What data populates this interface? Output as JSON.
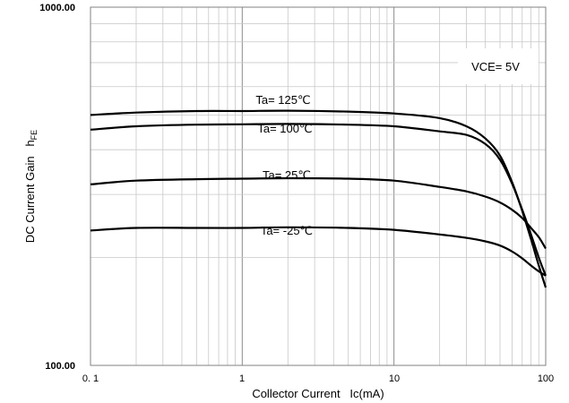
{
  "chart_data": {
    "type": "line",
    "title": "",
    "xlabel": "Collector Current   Ic(mA)",
    "ylabel": "DC Current Gain   h",
    "ylabel_subscript": "FE",
    "x_scale": "log",
    "y_scale": "log",
    "xlim": [
      0.1,
      100
    ],
    "ylim": [
      100,
      1000
    ],
    "x_tick_labels": [
      "0. 1",
      "1",
      "10",
      "100"
    ],
    "y_tick_labels": [
      "100.00",
      "1000.00"
    ],
    "grid": true,
    "annotation": "VCE= 5V",
    "series": [
      {
        "name": "Ta= 125℃",
        "x": [
          0.1,
          0.2,
          0.5,
          1,
          2,
          5,
          10,
          20,
          30,
          40,
          50,
          60,
          70,
          80,
          90,
          100
        ],
        "y": [
          500,
          508,
          513,
          513,
          514,
          511,
          505,
          490,
          465,
          430,
          385,
          325,
          270,
          225,
          190,
          165
        ]
      },
      {
        "name": "Ta= 100℃",
        "x": [
          0.1,
          0.2,
          0.5,
          1,
          2,
          5,
          10,
          20,
          30,
          40,
          50,
          60,
          70,
          80,
          90,
          100
        ],
        "y": [
          455,
          465,
          470,
          471,
          472,
          470,
          465,
          450,
          440,
          415,
          375,
          322,
          272,
          232,
          200,
          178
        ]
      },
      {
        "name": "Ta= 25℃",
        "x": [
          0.1,
          0.2,
          0.5,
          1,
          2,
          5,
          10,
          20,
          30,
          40,
          50,
          60,
          70,
          80,
          90,
          100
        ],
        "y": [
          320,
          328,
          331,
          332,
          333,
          332,
          328,
          315,
          306,
          296,
          285,
          272,
          258,
          242,
          228,
          212
        ]
      },
      {
        "name": "Ta= -25℃",
        "x": [
          0.1,
          0.2,
          0.5,
          1,
          2,
          5,
          10,
          20,
          30,
          40,
          50,
          60,
          70,
          80,
          90,
          100
        ],
        "y": [
          238,
          242,
          242,
          242,
          243,
          242,
          239,
          232,
          227,
          222,
          216,
          208,
          199,
          190,
          183,
          178
        ]
      }
    ]
  }
}
